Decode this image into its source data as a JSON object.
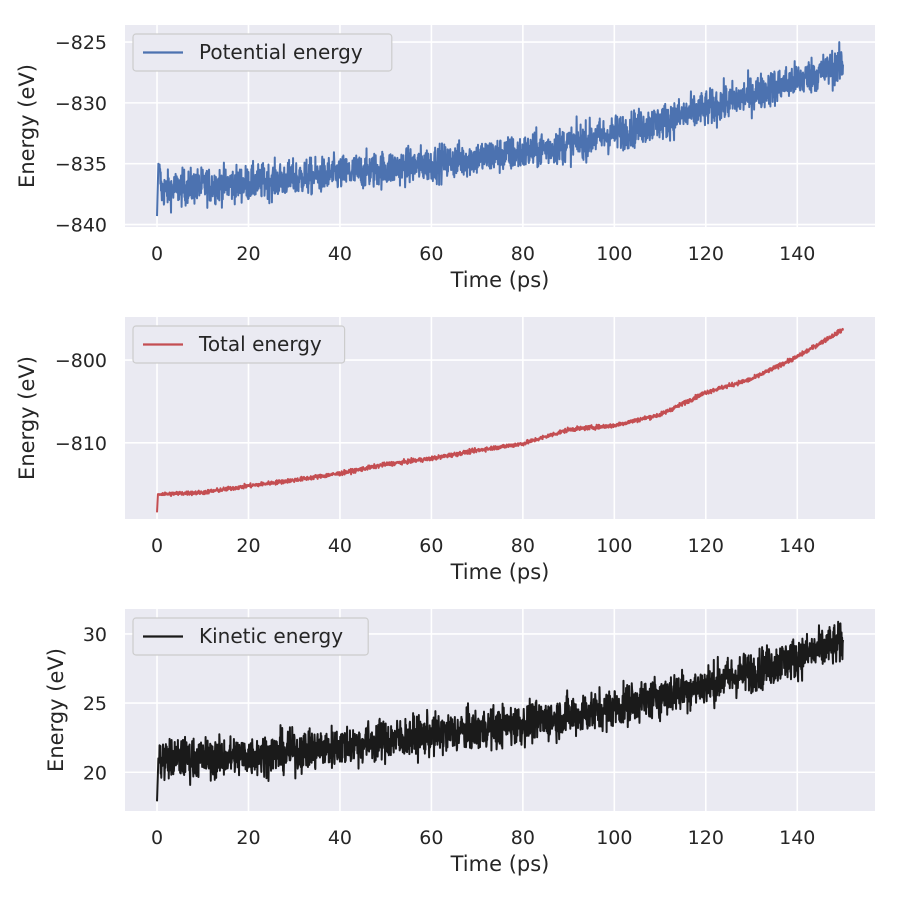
{
  "chart_data": [
    {
      "type": "line",
      "xlabel": "Time (ps)",
      "ylabel": "Energy (eV)",
      "xlim": [
        -7,
        157
      ],
      "ylim": [
        -840.2,
        -823.6
      ],
      "xticks": [
        0,
        20,
        40,
        60,
        80,
        100,
        120,
        140
      ],
      "yticks": [
        -840,
        -835,
        -830,
        -825
      ],
      "ytick_labels": [
        "−840",
        "−835",
        "−830",
        "−825"
      ],
      "grid": true,
      "legend_position": "top-left",
      "series": [
        {
          "name": "Potential energy",
          "color": "#4c72b0",
          "noise": 1.05,
          "x": [
            0,
            0.3,
            1,
            5,
            10,
            20,
            30,
            40,
            50,
            60,
            70,
            80,
            90,
            100,
            110,
            120,
            130,
            140,
            150
          ],
          "y": [
            -839.3,
            -835.0,
            -837.2,
            -837.0,
            -836.8,
            -836.6,
            -836.2,
            -835.8,
            -835.4,
            -835.0,
            -834.5,
            -834.1,
            -833.4,
            -832.5,
            -831.6,
            -830.5,
            -829.3,
            -828.1,
            -826.9
          ]
        }
      ]
    },
    {
      "type": "line",
      "xlabel": "Time (ps)",
      "ylabel": "Energy (eV)",
      "xlim": [
        -7,
        157
      ],
      "ylim": [
        -819.2,
        -794.8
      ],
      "xticks": [
        0,
        20,
        40,
        60,
        80,
        100,
        120,
        140
      ],
      "yticks": [
        -810,
        -800
      ],
      "ytick_labels": [
        "−810",
        "−800"
      ],
      "grid": true,
      "legend_position": "top-left",
      "series": [
        {
          "name": "Total energy",
          "color": "#c44e52",
          "noise": 0.18,
          "x": [
            0,
            0.2,
            1,
            10,
            20,
            30,
            40,
            50,
            60,
            70,
            80,
            90,
            100,
            110,
            120,
            130,
            140,
            150
          ],
          "y": [
            -818.4,
            -816.2,
            -816.2,
            -816.0,
            -815.2,
            -814.5,
            -813.7,
            -812.6,
            -811.9,
            -810.9,
            -810.1,
            -808.4,
            -807.9,
            -806.6,
            -803.9,
            -802.3,
            -799.6,
            -796.3
          ]
        }
      ]
    },
    {
      "type": "line",
      "xlabel": "Time (ps)",
      "ylabel": "Energy (eV)",
      "xlim": [
        -7,
        157
      ],
      "ylim": [
        17.2,
        31.8
      ],
      "xticks": [
        0,
        20,
        40,
        60,
        80,
        100,
        120,
        140
      ],
      "yticks": [
        20,
        25,
        30
      ],
      "ytick_labels": [
        "20",
        "25",
        "30"
      ],
      "grid": true,
      "legend_position": "top-left",
      "series": [
        {
          "name": "Kinetic energy",
          "color": "#1a1a1a",
          "noise": 1.05,
          "x": [
            0,
            0.3,
            1,
            5,
            10,
            20,
            30,
            40,
            50,
            60,
            70,
            80,
            90,
            100,
            110,
            120,
            130,
            140,
            150
          ],
          "y": [
            17.9,
            21.0,
            20.9,
            21.0,
            21.0,
            21.2,
            21.5,
            21.9,
            22.3,
            22.7,
            23.1,
            23.5,
            24.1,
            24.7,
            25.5,
            26.3,
            27.3,
            28.3,
            29.4
          ]
        }
      ]
    }
  ]
}
